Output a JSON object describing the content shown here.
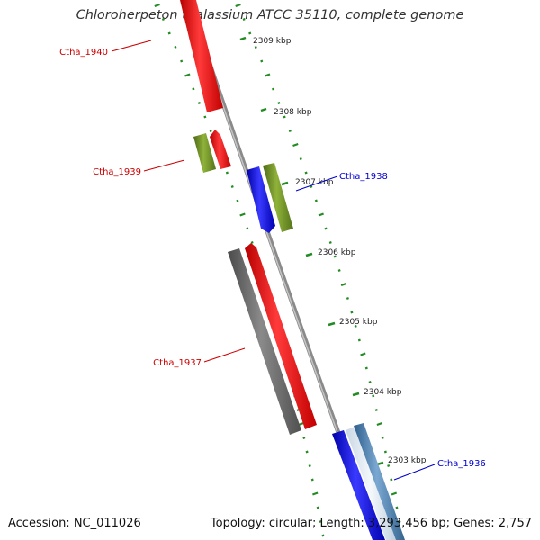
{
  "title": "Chloroherpeton thalassium ATCC 35110, complete genome",
  "accession_text": "Accession: NC_011026",
  "summary_text": "Topology: circular; Length: 3,293,456 bp; Genes: 2,757",
  "colors": {
    "red": "#ff0000",
    "olive": "#6b8e23",
    "blue": "#0000ee",
    "gray": "#666666",
    "steel": "#4682b4",
    "tick_green": "#228b22",
    "backbone": "#888888",
    "label_red": "#cc0000",
    "label_blue": "#0000cc"
  },
  "ticks": [
    {
      "label": "2309 kbp"
    },
    {
      "label": "2308 kbp"
    },
    {
      "label": "2307 kbp"
    },
    {
      "label": "2306 kbp"
    },
    {
      "label": "2305 kbp"
    },
    {
      "label": "2304 kbp"
    },
    {
      "label": "2303 kbp"
    }
  ],
  "gene_labels": [
    {
      "name": "Ctha_1940",
      "strand": "minus"
    },
    {
      "name": "Ctha_1939",
      "strand": "minus"
    },
    {
      "name": "Ctha_1938",
      "strand": "plus"
    },
    {
      "name": "Ctha_1937",
      "strand": "minus"
    },
    {
      "name": "Ctha_1936",
      "strand": "plus"
    }
  ]
}
